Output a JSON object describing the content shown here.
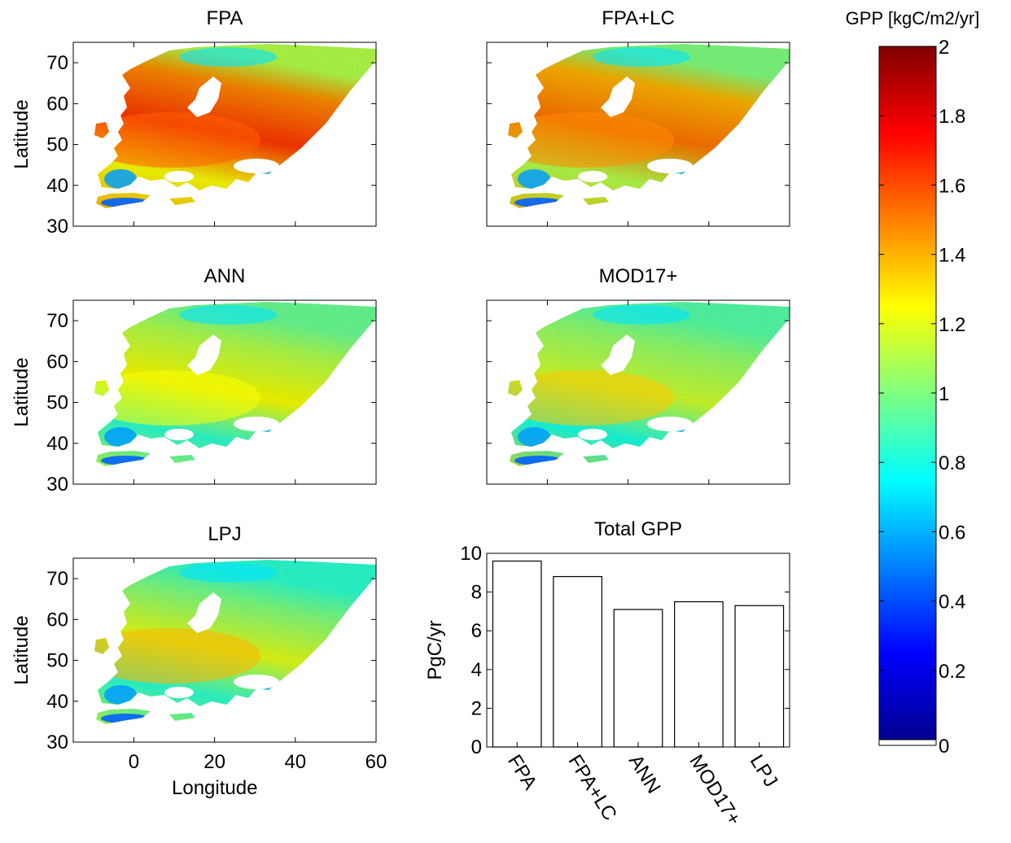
{
  "figure": {
    "colorbar_title": "GPP [kgC/m2/yr]",
    "colorbar_ticks": [
      "0",
      "0.2",
      "0.4",
      "0.6",
      "0.8",
      "1",
      "1.2",
      "1.4",
      "1.6",
      "1.8",
      "2"
    ]
  },
  "chart_data": [
    {
      "type": "heatmap",
      "title": "FPA",
      "xlabel": "",
      "ylabel": "Latitude",
      "xlim": [
        -15,
        60
      ],
      "ylim": [
        30,
        75
      ],
      "y_ticks": [
        "30",
        "40",
        "50",
        "60",
        "70"
      ],
      "x_ticks": [],
      "colorscale": "jet",
      "clim": [
        0,
        2
      ]
    },
    {
      "type": "heatmap",
      "title": "FPA+LC",
      "xlabel": "",
      "ylabel": "",
      "xlim": [
        -15,
        60
      ],
      "ylim": [
        30,
        75
      ],
      "y_ticks": [],
      "x_ticks": [],
      "colorscale": "jet",
      "clim": [
        0,
        2
      ]
    },
    {
      "type": "heatmap",
      "title": "ANN",
      "xlabel": "",
      "ylabel": "Latitude",
      "xlim": [
        -15,
        60
      ],
      "ylim": [
        30,
        75
      ],
      "y_ticks": [
        "30",
        "40",
        "50",
        "60",
        "70"
      ],
      "x_ticks": [],
      "colorscale": "jet",
      "clim": [
        0,
        2
      ]
    },
    {
      "type": "heatmap",
      "title": "MOD17+",
      "xlabel": "",
      "ylabel": "",
      "xlim": [
        -15,
        60
      ],
      "ylim": [
        30,
        75
      ],
      "y_ticks": [],
      "x_ticks": [],
      "colorscale": "jet",
      "clim": [
        0,
        2
      ]
    },
    {
      "type": "heatmap",
      "title": "LPJ",
      "xlabel": "Longitude",
      "ylabel": "Latitude",
      "xlim": [
        -15,
        60
      ],
      "ylim": [
        30,
        75
      ],
      "y_ticks": [
        "30",
        "40",
        "50",
        "60",
        "70"
      ],
      "x_ticks": [
        "0",
        "20",
        "40",
        "60"
      ],
      "colorscale": "jet",
      "clim": [
        0,
        2
      ]
    },
    {
      "type": "bar",
      "title": "Total GPP",
      "xlabel": "",
      "ylabel": "PgC/yr",
      "categories": [
        "FPA",
        "FPA+LC",
        "ANN",
        "MOD17+",
        "LPJ"
      ],
      "values": [
        9.6,
        8.8,
        7.1,
        7.5,
        7.3
      ],
      "ylim": [
        0,
        10
      ],
      "y_ticks": [
        "0",
        "2",
        "4",
        "6",
        "8",
        "10"
      ]
    }
  ]
}
